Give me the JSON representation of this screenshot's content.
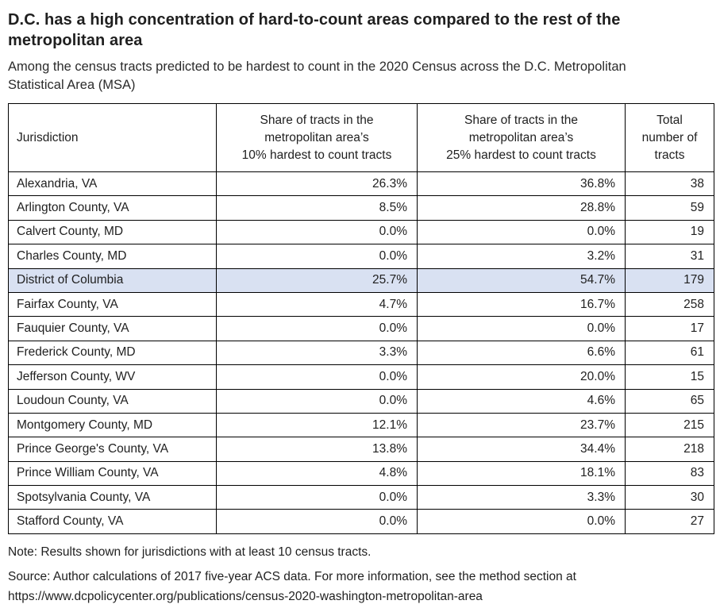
{
  "chart_data": {
    "type": "table",
    "title": "D.C. has a high concentration of hard-to-count areas compared to the rest of the metropolitan area",
    "subtitle": "Among the census tracts predicted to be hardest to count in the 2020 Census across the D.C. Metropolitan Statistical Area (MSA)",
    "columns": [
      "Jurisdiction",
      "Share of tracts in the metropolitan area’s 10% hardest to count tracts",
      "Share of tracts in the metropolitan area’s 25% hardest to count tracts",
      "Total number of tracts"
    ],
    "column_lines": [
      [
        "Jurisdiction"
      ],
      [
        "Share of tracts in the",
        "metropolitan area’s",
        "10% hardest to count tracts"
      ],
      [
        "Share of tracts in the",
        "metropolitan area’s",
        "25% hardest to count tracts"
      ],
      [
        "Total",
        "number of",
        "tracts"
      ]
    ],
    "rows": [
      [
        "Alexandria, VA",
        26.3,
        36.8,
        38
      ],
      [
        "Arlington County, VA",
        8.5,
        28.8,
        59
      ],
      [
        "Calvert County, MD",
        0.0,
        0.0,
        19
      ],
      [
        "Charles County, MD",
        0.0,
        3.2,
        31
      ],
      [
        "District of Columbia",
        25.7,
        54.7,
        179
      ],
      [
        "Fairfax County, VA",
        4.7,
        16.7,
        258
      ],
      [
        "Fauquier County, VA",
        0.0,
        0.0,
        17
      ],
      [
        "Frederick County, MD",
        3.3,
        6.6,
        61
      ],
      [
        "Jefferson County, WV",
        0.0,
        20.0,
        15
      ],
      [
        "Loudoun County, VA",
        0.0,
        4.6,
        65
      ],
      [
        "Montgomery County, MD",
        12.1,
        23.7,
        215
      ],
      [
        "Prince George's County, VA",
        13.8,
        34.4,
        218
      ],
      [
        "Prince William County, VA",
        4.8,
        18.1,
        83
      ],
      [
        "Spotsylvania County, VA",
        0.0,
        3.3,
        30
      ],
      [
        "Stafford County, VA",
        0.0,
        0.0,
        27
      ]
    ],
    "highlighted_row": "District of Columbia",
    "highlight_color": "#d9e1f2",
    "note": "Note: Results shown for jurisdictions with at least 10 census tracts.",
    "source": "Source: Author calculations of 2017 five-year ACS data. For more information, see the method section at https://www.dcpolicycenter.org/publications/census-2020-washington-metropolitan-area"
  }
}
